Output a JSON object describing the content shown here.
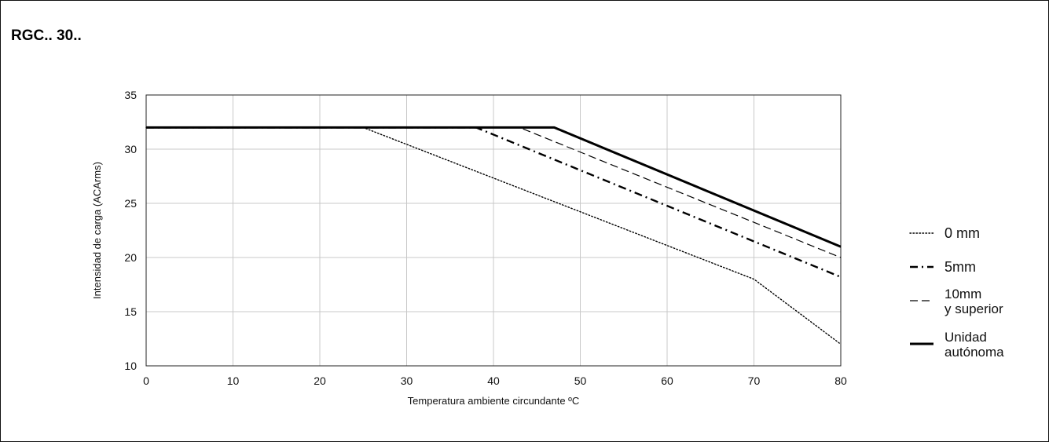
{
  "heading": "RGC.. 30..",
  "chart_data": {
    "type": "line",
    "xlabel": "Temperatura ambiente circundante ºC",
    "ylabel": "Intensidad de carga (ACArms)",
    "xlim": [
      0,
      80
    ],
    "ylim": [
      10,
      35
    ],
    "xticks": [
      0,
      10,
      20,
      30,
      40,
      50,
      60,
      70,
      80
    ],
    "yticks": [
      10,
      15,
      20,
      25,
      30,
      35
    ],
    "grid": true,
    "legend_position": "right",
    "series": [
      {
        "name": "0 mm",
        "style": "dotted",
        "x": [
          0,
          25,
          70,
          80
        ],
        "y": [
          32,
          32,
          18,
          12
        ]
      },
      {
        "name": "5mm",
        "style": "dash-dot",
        "x": [
          0,
          38,
          80
        ],
        "y": [
          32,
          32,
          18.2
        ]
      },
      {
        "name": "10mm y superior",
        "name_lines": [
          "10mm",
          "y superior"
        ],
        "style": "dashed",
        "x": [
          0,
          43,
          80
        ],
        "y": [
          32,
          32,
          20
        ]
      },
      {
        "name": "Unidad autónoma",
        "name_lines": [
          "Unidad",
          "autónoma"
        ],
        "style": "solid-thick",
        "x": [
          0,
          47,
          80
        ],
        "y": [
          32,
          32,
          21
        ]
      }
    ]
  }
}
